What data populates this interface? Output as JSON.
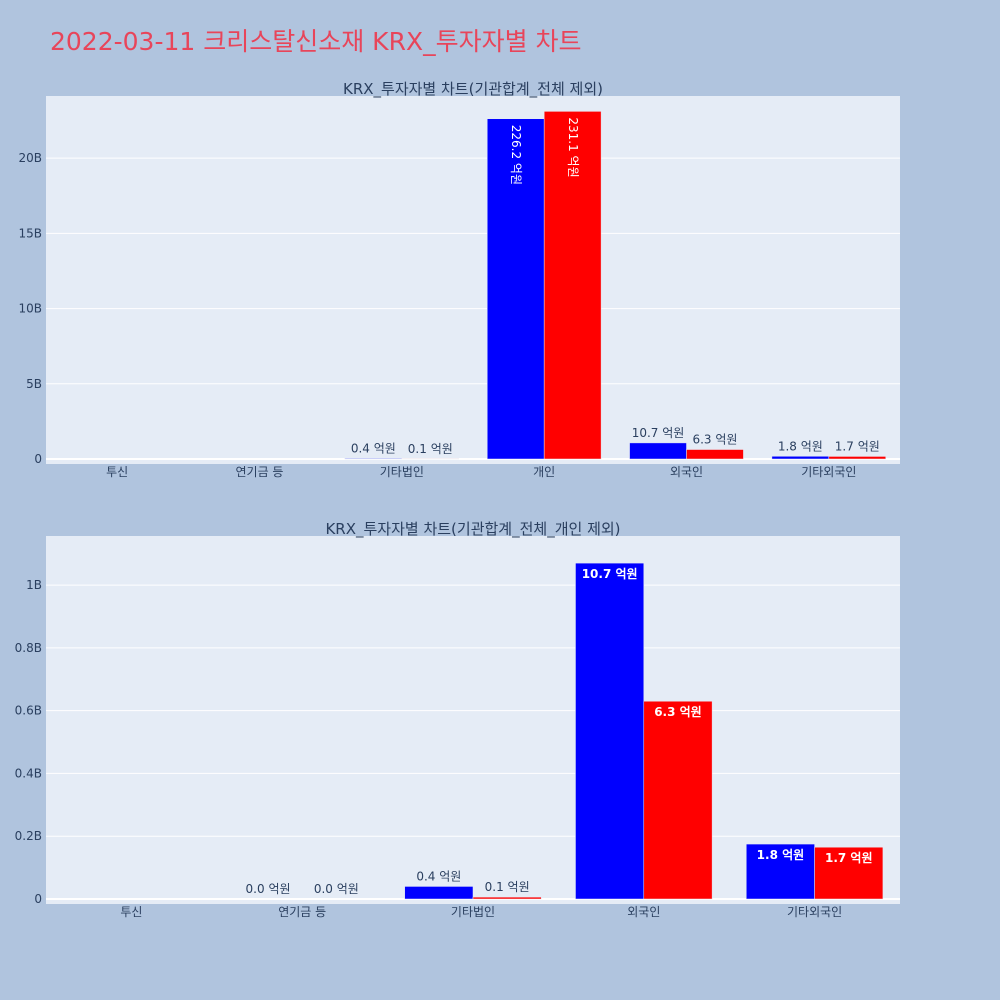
{
  "page": {
    "title": "2022-03-11 크리스탈신소재 KRX_투자자별 차트"
  },
  "colors": {
    "page_background": "#b0c4de",
    "plot_background": "#e5ecf6",
    "title": "#e8455a",
    "series_1": "#0000ff",
    "series_2": "#ff0000"
  },
  "chart_data": [
    {
      "type": "bar",
      "title": "KRX_투자자별 차트(기관합계_전체 제외)",
      "categories": [
        "투신",
        "연기금 등",
        "기타법인",
        "개인",
        "외국인",
        "기타외국인"
      ],
      "series": [
        {
          "values": [
            0,
            0,
            40000000,
            22620000000,
            1070000000,
            180000000
          ],
          "labels": [
            "",
            "",
            "0.4 억원",
            "226.2 억원",
            "10.7 억원",
            "1.8 억원"
          ]
        },
        {
          "values": [
            0,
            0,
            10000000,
            23110000000,
            630000000,
            170000000
          ],
          "labels": [
            "",
            "",
            "0.1 억원",
            "231.1 억원",
            "6.3 억원",
            "1.7 억원"
          ]
        }
      ],
      "ylim": [
        0,
        24000000000
      ],
      "yticks": [
        0,
        5000000000,
        10000000000,
        15000000000,
        20000000000
      ],
      "ytick_labels": [
        "0",
        "5B",
        "10B",
        "15B",
        "20B"
      ],
      "grid": true,
      "legend": "none"
    },
    {
      "type": "bar",
      "title": "KRX_투자자별 차트(기관합계_전체_개인 제외)",
      "categories": [
        "투신",
        "연기금 등",
        "기타법인",
        "외국인",
        "기타외국인"
      ],
      "series": [
        {
          "values": [
            0,
            0,
            40000000,
            1070000000,
            175000000
          ],
          "labels": [
            "",
            "0.0 억원",
            "0.4 억원",
            "10.7 억원",
            "1.8 억원"
          ]
        },
        {
          "values": [
            0,
            0,
            6000000,
            630000000,
            165000000
          ],
          "labels": [
            "",
            "0.0 억원",
            "0.1 억원",
            "6.3 억원",
            "1.7 억원"
          ]
        }
      ],
      "ylim": [
        0,
        1150000000
      ],
      "yticks": [
        0,
        200000000,
        400000000,
        600000000,
        800000000,
        1000000000
      ],
      "ytick_labels": [
        "0",
        "0.2B",
        "0.4B",
        "0.6B",
        "0.8B",
        "1B"
      ],
      "grid": true,
      "legend": "none"
    }
  ]
}
